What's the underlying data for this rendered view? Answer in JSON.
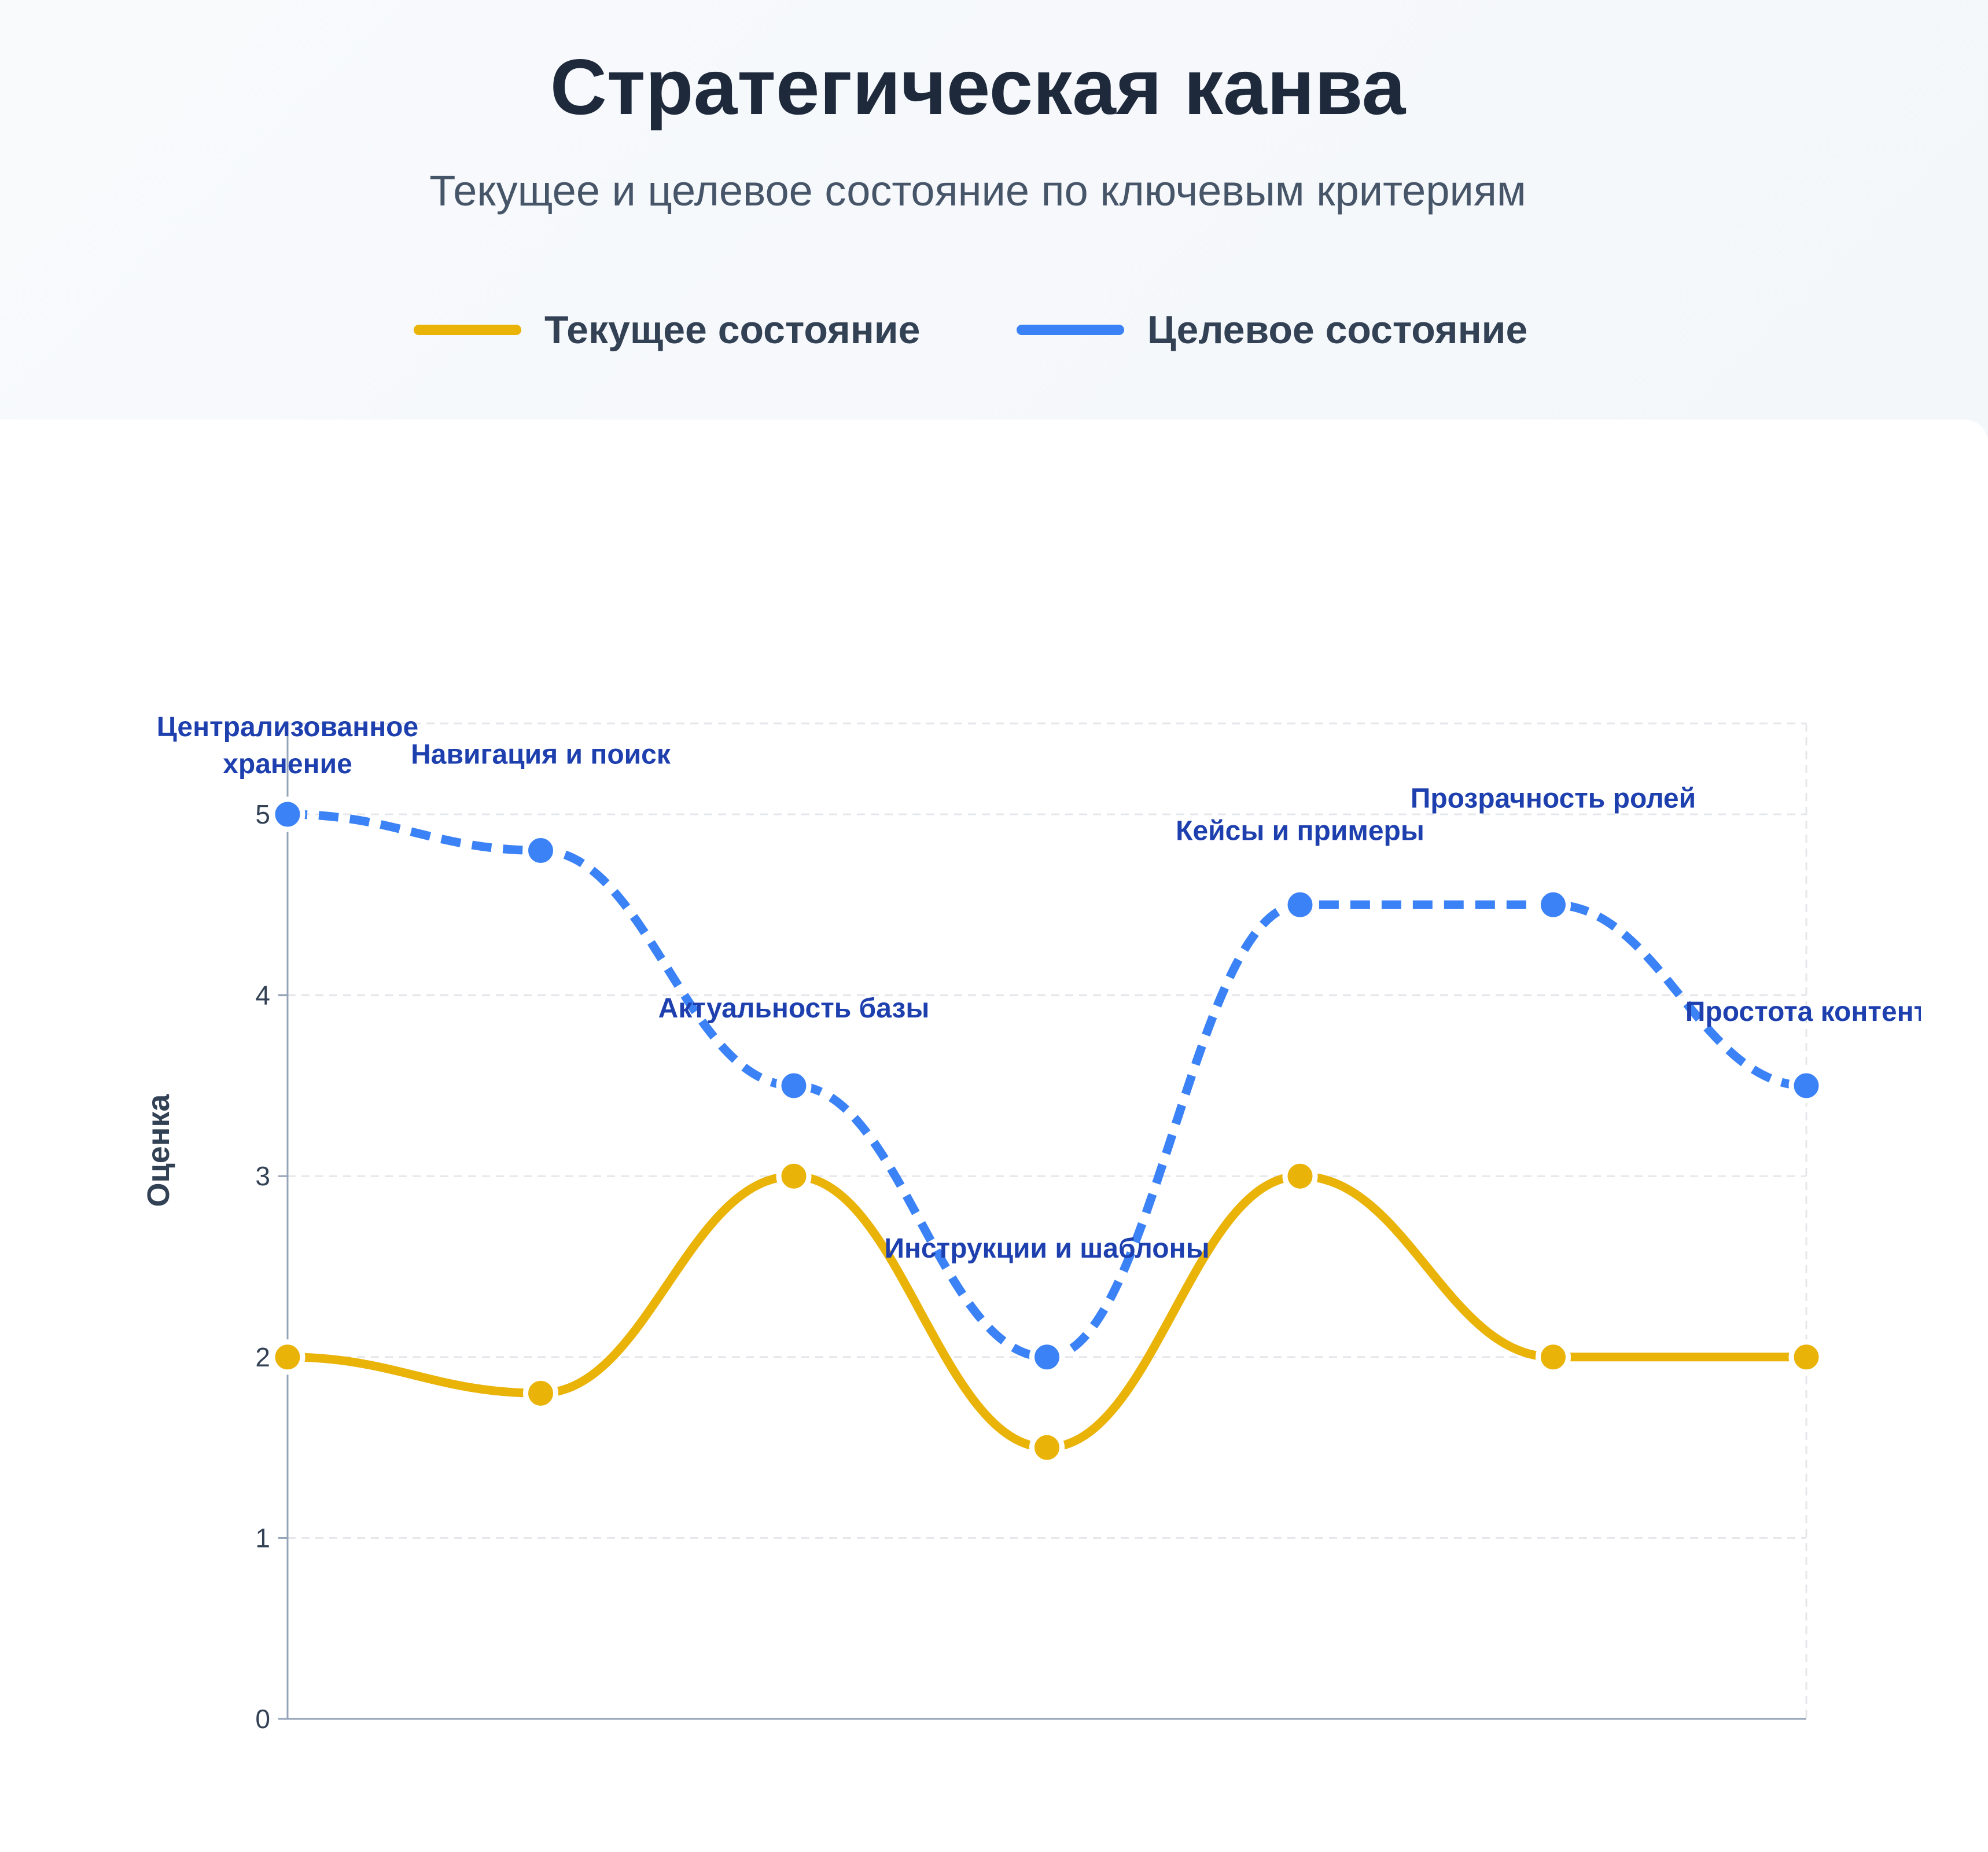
{
  "header": {
    "title": "Стратегическая канва",
    "subtitle": "Текущее и целевое состояние по ключевым критериям"
  },
  "legend": {
    "current_label": "Текущее состояние",
    "target_label": "Целевое состояние"
  },
  "colors": {
    "current": "#eab308",
    "target": "#3b82f6",
    "label_text": "#1e40af",
    "grid": "#e5e7eb",
    "axis": "#94a3b8"
  },
  "chart_data": {
    "type": "line",
    "categories": [
      "Централизованное хранение",
      "Навигация и поиск",
      "Актуальность базы",
      "Инструкции и шаблоны",
      "Кейсы и примеры",
      "Прозрачность ролей",
      "Простота контента"
    ],
    "point_labels": [
      [
        "Централизованное",
        "хранение"
      ],
      [
        "Навигация и поиск"
      ],
      [
        "Актуальность базы"
      ],
      [
        "Инструкции и шаблоны"
      ],
      [
        "Кейсы и примеры"
      ],
      [
        "Прозрачность ролей"
      ],
      [
        "Простота контент"
      ]
    ],
    "series": [
      {
        "name": "Текущее состояние",
        "values": [
          2,
          1.8,
          3,
          1.5,
          3,
          2,
          2
        ]
      },
      {
        "name": "Целевое состояние",
        "values": [
          5,
          4.8,
          3.5,
          2,
          4.5,
          4.5,
          3.5
        ]
      }
    ],
    "ylabel": "Оценка",
    "yticks": [
      0,
      1,
      2,
      3,
      4,
      5
    ],
    "ylim": [
      0,
      5.5
    ],
    "grid": true,
    "legend_position": "top"
  }
}
